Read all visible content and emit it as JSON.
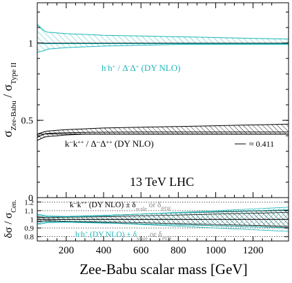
{
  "chart_data": [
    {
      "type": "area",
      "panel": "upper ratio",
      "ylabel": {
        "main": "σ",
        "sub1": "Zee-Babu",
        "mid": " / σ",
        "sub2": "Type II"
      },
      "xlim": [
        45,
        1390
      ],
      "ylim": [
        0,
        1.26
      ],
      "yticks": [
        0,
        0.5,
        1
      ],
      "ytick_labels": [
        "0",
        "0.5",
        "1"
      ],
      "grid": false,
      "annotation": "13 TeV LHC",
      "series": [
        {
          "name": "h⁻h⁺ / Δ⁻Δ⁺ (DY NLO)",
          "name_parts": [
            "h",
            "-",
            "h",
            "+",
            " / ",
            "Δ",
            "-",
            "Δ",
            "+",
            " (DY NLO)"
          ],
          "color": "#1fb5b8",
          "fill": "hatch",
          "x": [
            45,
            80,
            100,
            150,
            200,
            300,
            400,
            600,
            800,
            1000,
            1200,
            1390
          ],
          "central": [
            1.0,
            0.995,
            0.995,
            0.995,
            0.995,
            0.995,
            0.995,
            0.995,
            0.995,
            0.995,
            0.995,
            0.995
          ],
          "upper": [
            1.12,
            1.08,
            1.07,
            1.065,
            1.06,
            1.055,
            1.05,
            1.045,
            1.04,
            1.035,
            1.03,
            1.025
          ],
          "lower": [
            0.94,
            0.95,
            0.96,
            0.965,
            0.97,
            0.975,
            0.98,
            0.985,
            0.99,
            0.99,
            0.99,
            0.99
          ]
        },
        {
          "name": "k⁻k⁺⁺ / Δ⁻Δ⁺⁺ (DY NLO)",
          "name_parts": [
            "k",
            "--",
            "k",
            "++",
            " / ",
            "Δ",
            "--",
            "Δ",
            "++",
            " (DY NLO)"
          ],
          "color": "#000000",
          "fill": "hatch",
          "x": [
            45,
            80,
            100,
            150,
            200,
            300,
            400,
            600,
            800,
            1000,
            1200,
            1390
          ],
          "central": [
            0.39,
            0.41,
            0.415,
            0.418,
            0.42,
            0.422,
            0.423,
            0.424,
            0.424,
            0.424,
            0.424,
            0.424
          ],
          "upper": [
            0.41,
            0.425,
            0.43,
            0.435,
            0.44,
            0.445,
            0.45,
            0.455,
            0.46,
            0.465,
            0.47,
            0.475
          ],
          "lower": [
            0.37,
            0.39,
            0.395,
            0.4,
            0.405,
            0.41,
            0.41,
            0.41,
            0.41,
            0.41,
            0.41,
            0.411
          ]
        }
      ],
      "reference_line": {
        "value": 0.411,
        "label": "≈ 0.411",
        "color": "#000000"
      }
    },
    {
      "type": "area",
      "panel": "lower relative uncertainty",
      "ylabel": {
        "main": "δσ / σ",
        "sub": "Cen."
      },
      "xlabel": "Zee-Babu scalar mass [GeV]",
      "xlim": [
        45,
        1390
      ],
      "xticks": [
        200,
        400,
        600,
        800,
        1000,
        1200
      ],
      "xtick_labels": [
        "200",
        "400",
        "600",
        "800",
        "1000",
        "1200"
      ],
      "ylim": [
        0.75,
        1.25
      ],
      "yticks": [
        0.8,
        0.9,
        1,
        1.1,
        1.2
      ],
      "ytick_labels": [
        "0.8",
        "0.9",
        "1",
        "1.1",
        "1.2"
      ],
      "grid": "dotted horizontal lines at ticks",
      "labels": [
        {
          "color": "#000000",
          "parts": [
            "k",
            "--",
            "k",
            "++",
            " (DY NLO) ± δ",
            "scale",
            " or δ",
            "PDF"
          ]
        },
        {
          "color": "#1fb5b8",
          "parts": [
            "h",
            "-",
            "h",
            "+",
            " (DY NLO) ± δ",
            "scale",
            " or δ",
            "PDF"
          ]
        }
      ],
      "bands": [
        {
          "name": "k⁻k⁺⁺ δscale",
          "color": "#000000",
          "x": [
            45,
            100,
            200,
            400,
            600,
            800,
            1000,
            1200,
            1390
          ],
          "upper": [
            1.03,
            1.02,
            1.03,
            1.045,
            1.06,
            1.075,
            1.085,
            1.095,
            1.105
          ],
          "lower": [
            0.97,
            0.985,
            0.975,
            0.96,
            0.945,
            0.935,
            0.925,
            0.915,
            0.905
          ]
        },
        {
          "name": "k⁻k⁺⁺ δPDF",
          "color": "#000000",
          "x": [
            45,
            100,
            200,
            400,
            600,
            800,
            1000,
            1200,
            1390
          ],
          "upper": [
            1.02,
            1.02,
            1.025,
            1.03,
            1.04,
            1.05,
            1.06,
            1.07,
            1.08
          ],
          "lower": [
            0.98,
            0.98,
            0.975,
            0.97,
            0.96,
            0.95,
            0.94,
            0.93,
            0.92
          ]
        },
        {
          "name": "h⁻h⁺ δscale",
          "color": "#1fb5b8",
          "x": [
            45,
            100,
            200,
            400,
            600,
            800,
            1000,
            1200,
            1390
          ],
          "upper": [
            1.06,
            1.04,
            1.035,
            1.045,
            1.06,
            1.075,
            1.09,
            1.1,
            1.11
          ],
          "lower": [
            0.94,
            0.96,
            0.965,
            0.955,
            0.945,
            0.935,
            0.925,
            0.915,
            0.9
          ]
        },
        {
          "name": "h⁻h⁺ δPDF",
          "color": "#1fb5b8",
          "x": [
            45,
            100,
            200,
            400,
            600,
            800,
            1000,
            1200,
            1390
          ],
          "upper": [
            1.05,
            1.03,
            1.03,
            1.04,
            1.06,
            1.08,
            1.1,
            1.12,
            1.14
          ],
          "lower": [
            0.95,
            0.97,
            0.97,
            0.96,
            0.94,
            0.92,
            0.9,
            0.88,
            0.86
          ]
        }
      ]
    }
  ]
}
